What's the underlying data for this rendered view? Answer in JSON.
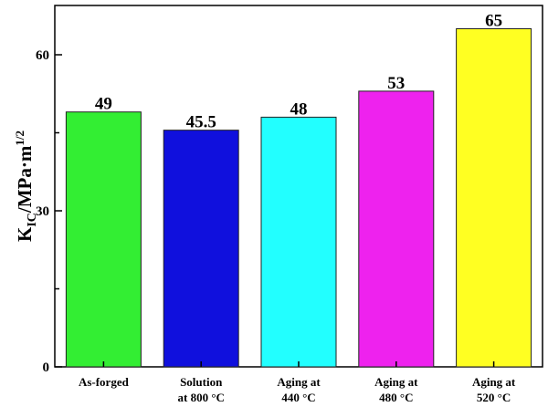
{
  "chart_data": {
    "type": "bar",
    "categories": [
      [
        "As-forged"
      ],
      [
        "Solution",
        "at 800 °C"
      ],
      [
        "Aging at",
        "440 °C"
      ],
      [
        "Aging at",
        "480 °C"
      ],
      [
        "Aging at",
        "520 °C"
      ]
    ],
    "values": [
      49,
      45.5,
      48,
      53,
      65
    ],
    "data_labels": [
      "49",
      "45.5",
      "48",
      "53",
      "65"
    ],
    "colors": [
      "#33ee33",
      "#1010dd",
      "#22ffff",
      "#ee22ee",
      "#ffff22"
    ],
    "ylabel": {
      "main": "K",
      "sub": "IC",
      "rest": "/MPa·m",
      "sup": "1/2"
    },
    "ylim": [
      0,
      70
    ],
    "yticks": [
      0,
      30,
      60
    ],
    "grid": false,
    "legend": "none"
  }
}
